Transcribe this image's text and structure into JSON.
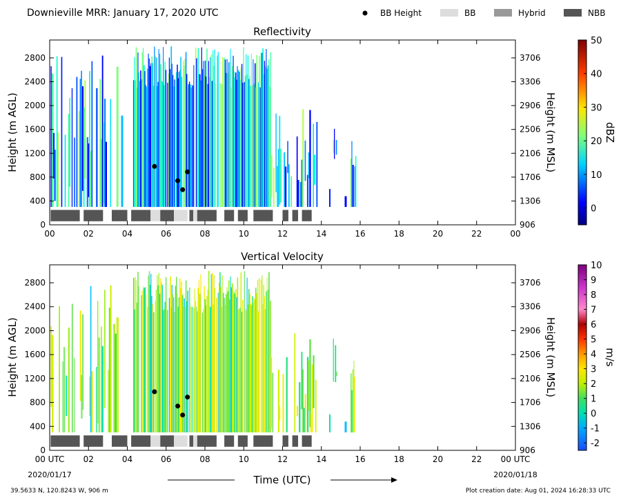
{
  "header": {
    "title": "Downieville MRR:  January 17, 2020 UTC",
    "legend": [
      {
        "label": "BB Height",
        "marker": "dot",
        "color": "#000000"
      },
      {
        "label": "BB",
        "marker": "box",
        "color": "#dddddd"
      },
      {
        "label": "Hybrid",
        "marker": "box",
        "color": "#999999"
      },
      {
        "label": "NBB",
        "marker": "box",
        "color": "#555555"
      }
    ]
  },
  "footer": {
    "location": "39.5633 N, 120.8243 W, 906 m",
    "created": "Plot creation date: Aug 01, 2024 16:28:33 UTC",
    "xlabel": "Time (UTC)",
    "start_date": "2020/01/17",
    "end_date": "2020/01/18"
  },
  "chart_data": [
    {
      "type": "heatmap",
      "title": "Reflectivity",
      "ylabel": "Height (m AGL)",
      "ylabel_right": "Height (m MSL)",
      "x_ticks": [
        "00",
        "02",
        "04",
        "06",
        "08",
        "10",
        "12",
        "14",
        "16",
        "18",
        "20",
        "22",
        "00"
      ],
      "xlim": [
        0,
        24
      ],
      "ylim": [
        0,
        3100
      ],
      "y_ticks": [
        0,
        400,
        800,
        1200,
        1600,
        2000,
        2400,
        2800
      ],
      "y_ticks_right": [
        "906",
        "1306",
        "1706",
        "2106",
        "2506",
        "2906",
        "3306",
        "3706"
      ],
      "colorbar": {
        "label": "dBZ",
        "range": [
          -5,
          50
        ],
        "ticks": [
          0,
          10,
          20,
          30,
          40,
          50
        ]
      },
      "bb_height_points": [
        {
          "x": 5.4,
          "y": 980
        },
        {
          "x": 6.6,
          "y": 740
        },
        {
          "x": 6.85,
          "y": 590
        },
        {
          "x": 7.1,
          "y": 890
        }
      ],
      "bb_segments": [
        {
          "start": 0.05,
          "end": 1.55,
          "type": "NBB"
        },
        {
          "start": 1.75,
          "end": 2.75,
          "type": "NBB"
        },
        {
          "start": 3.2,
          "end": 4.0,
          "type": "NBB"
        },
        {
          "start": 4.2,
          "end": 5.2,
          "type": "NBB"
        },
        {
          "start": 5.2,
          "end": 5.7,
          "type": "BB"
        },
        {
          "start": 5.7,
          "end": 6.4,
          "type": "NBB"
        },
        {
          "start": 6.4,
          "end": 7.1,
          "type": "BB"
        },
        {
          "start": 7.2,
          "end": 7.4,
          "type": "NBB"
        },
        {
          "start": 7.4,
          "end": 7.6,
          "type": "BB"
        },
        {
          "start": 7.6,
          "end": 8.6,
          "type": "NBB"
        },
        {
          "start": 9.0,
          "end": 9.5,
          "type": "NBB"
        },
        {
          "start": 9.7,
          "end": 10.2,
          "type": "NBB"
        },
        {
          "start": 10.5,
          "end": 11.5,
          "type": "NBB"
        },
        {
          "start": 12.0,
          "end": 12.3,
          "type": "NBB"
        },
        {
          "start": 12.5,
          "end": 12.8,
          "type": "NBB"
        },
        {
          "start": 13.0,
          "end": 13.5,
          "type": "NBB"
        }
      ]
    },
    {
      "type": "heatmap",
      "title": "Vertical Velocity",
      "ylabel": "Height (m AGL)",
      "ylabel_right": "Height (m MSL)",
      "x_ticks": [
        "00 UTC",
        "02",
        "04",
        "06",
        "08",
        "10",
        "12",
        "14",
        "16",
        "18",
        "20",
        "22",
        "00 UTC"
      ],
      "xlim": [
        0,
        24
      ],
      "ylim": [
        0,
        3100
      ],
      "y_ticks": [
        0,
        400,
        800,
        1200,
        1600,
        2000,
        2400,
        2800
      ],
      "y_ticks_right": [
        "906",
        "1306",
        "1706",
        "2106",
        "2506",
        "2906",
        "3306",
        "3706"
      ],
      "colorbar": {
        "label": "m/s",
        "range": [
          -2.5,
          10
        ],
        "ticks": [
          -2,
          -1,
          0,
          1,
          2,
          3,
          4,
          5,
          6,
          7,
          8,
          9,
          10
        ]
      },
      "bb_height_points": [
        {
          "x": 5.4,
          "y": 980
        },
        {
          "x": 6.6,
          "y": 740
        },
        {
          "x": 6.85,
          "y": 590
        },
        {
          "x": 7.1,
          "y": 890
        }
      ],
      "bb_segments": [
        {
          "start": 0.05,
          "end": 1.55,
          "type": "NBB"
        },
        {
          "start": 1.75,
          "end": 2.75,
          "type": "NBB"
        },
        {
          "start": 3.2,
          "end": 4.0,
          "type": "NBB"
        },
        {
          "start": 4.2,
          "end": 5.2,
          "type": "NBB"
        },
        {
          "start": 5.2,
          "end": 5.7,
          "type": "BB"
        },
        {
          "start": 5.7,
          "end": 6.4,
          "type": "NBB"
        },
        {
          "start": 6.4,
          "end": 7.1,
          "type": "BB"
        },
        {
          "start": 7.2,
          "end": 7.4,
          "type": "NBB"
        },
        {
          "start": 7.4,
          "end": 7.6,
          "type": "BB"
        },
        {
          "start": 7.6,
          "end": 8.6,
          "type": "NBB"
        },
        {
          "start": 9.0,
          "end": 9.5,
          "type": "NBB"
        },
        {
          "start": 9.7,
          "end": 10.2,
          "type": "NBB"
        },
        {
          "start": 10.5,
          "end": 11.5,
          "type": "NBB"
        },
        {
          "start": 12.0,
          "end": 12.3,
          "type": "NBB"
        },
        {
          "start": 12.5,
          "end": 12.8,
          "type": "NBB"
        },
        {
          "start": 13.0,
          "end": 13.5,
          "type": "NBB"
        }
      ]
    }
  ]
}
